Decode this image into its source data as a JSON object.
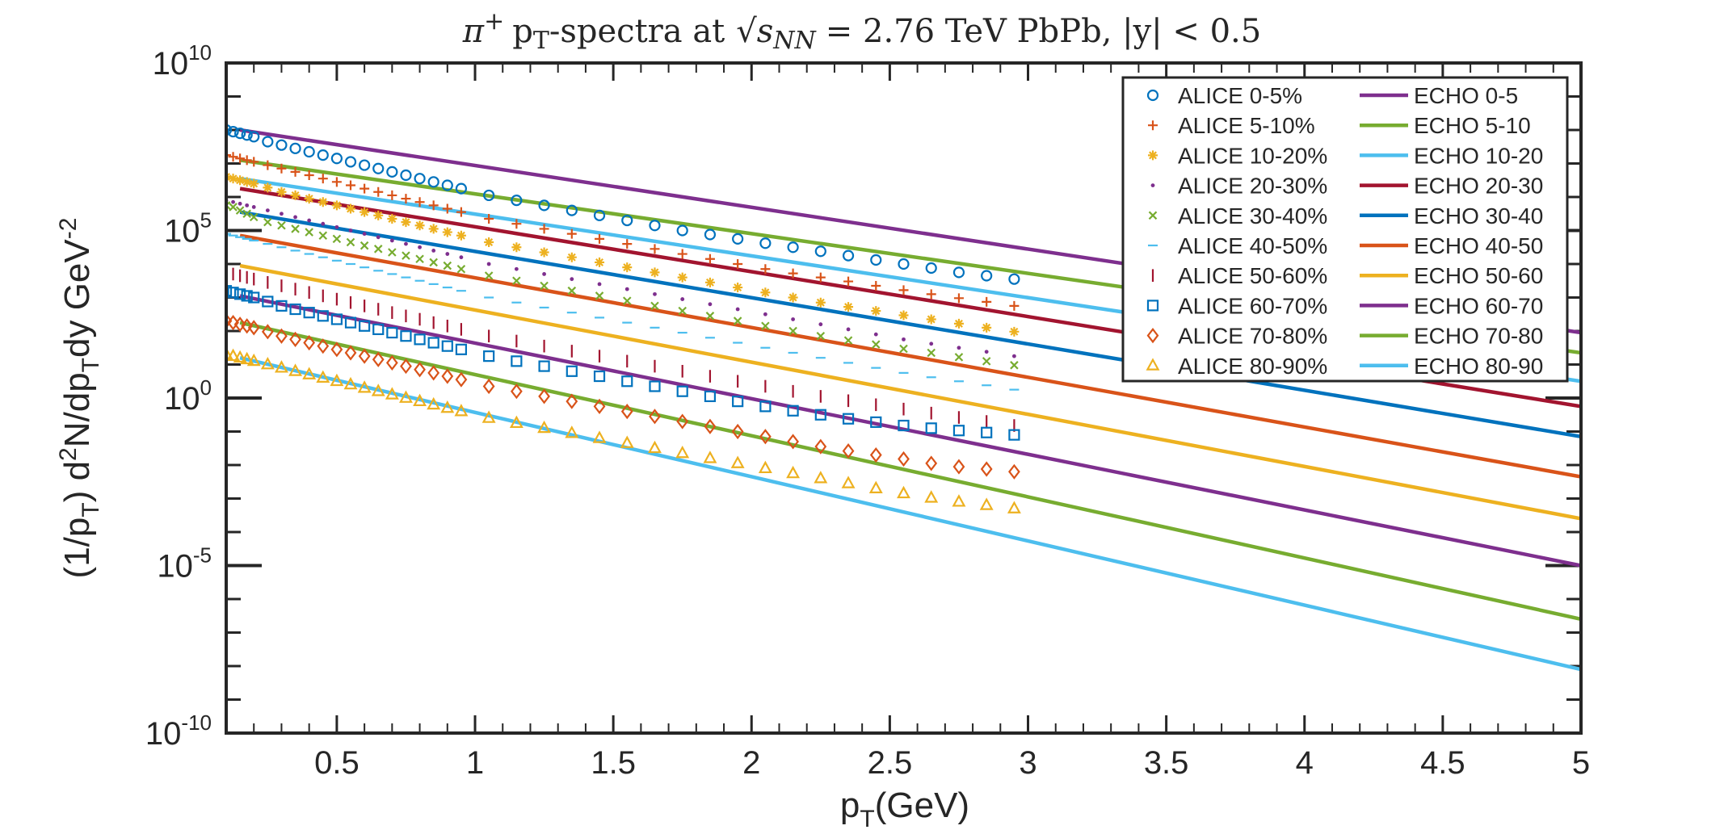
{
  "chart_data": {
    "type": "scatter",
    "title": "π+ pT-spectra at √sNN = 2.76 TeV PbPb, |y| < 0.5",
    "title_parts": {
      "particle": "π",
      "charge": "+",
      "p": "p",
      "T": "T",
      "spectra_at": "-spectra at",
      "s": "s",
      "NN": "NN",
      "rest": "= 2.76 TeV PbPb, |y| < 0.5"
    },
    "xlabel": "pT(GeV)",
    "xlabel_parts": {
      "p": "p",
      "T": "T",
      "unit": "(GeV)"
    },
    "ylabel": "(1/pT) d2N/dpTdy GeV-2",
    "ylabel_parts": {
      "a": "(1/p",
      "T1": "T",
      "b": ") d",
      "two": "2",
      "c": "N/dp",
      "T2": "T",
      "d": "dy GeV",
      "exp": "-2"
    },
    "xlim": [
      0.1,
      5
    ],
    "ylim": [
      -10,
      10
    ],
    "y_scale": "log",
    "x_ticks": [
      "0.5",
      "1",
      "1.5",
      "2",
      "2.5",
      "3",
      "3.5",
      "4",
      "4.5",
      "5"
    ],
    "x_tick_values": [
      0.5,
      1,
      1.5,
      2,
      2.5,
      3,
      3.5,
      4,
      4.5,
      5
    ],
    "y_ticks": [
      {
        "base": "10",
        "exp": "10",
        "value": 10
      },
      {
        "base": "10",
        "exp": "5",
        "value": 5
      },
      {
        "base": "10",
        "exp": "0",
        "value": 0
      },
      {
        "base": "10",
        "exp": "-5",
        "value": -5
      },
      {
        "base": "10",
        "exp": "-10",
        "value": -10
      }
    ],
    "legend_position": "top-right",
    "legend_columns": 2,
    "data_x": [
      0.1,
      0.125,
      0.15,
      0.175,
      0.2,
      0.25,
      0.3,
      0.35,
      0.4,
      0.45,
      0.5,
      0.55,
      0.6,
      0.65,
      0.7,
      0.75,
      0.8,
      0.85,
      0.9,
      0.95,
      1.05,
      1.15,
      1.25,
      1.35,
      1.45,
      1.55,
      1.65,
      1.75,
      1.85,
      1.95,
      2.05,
      2.15,
      2.25,
      2.35,
      2.45,
      2.55,
      2.65,
      2.75,
      2.85,
      2.95
    ],
    "model_x": [
      0.15,
      5
    ],
    "data_series": [
      {
        "name": "ALICE 0-5%",
        "marker": "circle",
        "color": "#0072BD",
        "y_log10": [
          8.0,
          7.95,
          7.9,
          7.85,
          7.8,
          7.65,
          7.55,
          7.45,
          7.35,
          7.25,
          7.15,
          7.05,
          6.95,
          6.85,
          6.75,
          6.65,
          6.55,
          6.45,
          6.35,
          6.25,
          6.05,
          5.9,
          5.75,
          5.6,
          5.45,
          5.3,
          5.15,
          5.0,
          4.88,
          4.75,
          4.62,
          4.5,
          4.38,
          4.25,
          4.12,
          4.0,
          3.88,
          3.75,
          3.65,
          3.55
        ]
      },
      {
        "name": "ALICE 5-10%",
        "marker": "plus",
        "color": "#D95319",
        "y_log10": [
          7.25,
          7.2,
          7.15,
          7.1,
          7.05,
          6.95,
          6.85,
          6.75,
          6.65,
          6.55,
          6.45,
          6.35,
          6.25,
          6.15,
          6.05,
          5.95,
          5.85,
          5.75,
          5.65,
          5.55,
          5.35,
          5.2,
          5.05,
          4.9,
          4.75,
          4.6,
          4.45,
          4.3,
          4.15,
          4.0,
          3.85,
          3.72,
          3.6,
          3.48,
          3.35,
          3.22,
          3.1,
          2.98,
          2.87,
          2.75
        ]
      },
      {
        "name": "ALICE 10-20%",
        "marker": "star",
        "color": "#EDB120",
        "y_log10": [
          6.6,
          6.55,
          6.5,
          6.45,
          6.4,
          6.28,
          6.15,
          6.05,
          5.95,
          5.85,
          5.75,
          5.65,
          5.55,
          5.45,
          5.35,
          5.25,
          5.15,
          5.05,
          4.95,
          4.85,
          4.65,
          4.5,
          4.35,
          4.2,
          4.05,
          3.9,
          3.75,
          3.6,
          3.45,
          3.3,
          3.15,
          3.0,
          2.85,
          2.72,
          2.6,
          2.47,
          2.35,
          2.22,
          2.1,
          1.98
        ]
      },
      {
        "name": "ALICE 20-30%",
        "marker": "dot",
        "color": "#7E2F8E",
        "y_log10": [
          5.9,
          5.85,
          5.8,
          5.75,
          5.7,
          5.6,
          5.5,
          5.4,
          5.3,
          5.2,
          5.1,
          5.0,
          4.9,
          4.8,
          4.7,
          4.6,
          4.5,
          4.4,
          4.3,
          4.2,
          4.0,
          3.85,
          3.7,
          3.55,
          3.4,
          3.25,
          3.1,
          2.95,
          2.8,
          2.65,
          2.5,
          2.35,
          2.2,
          2.05,
          1.9,
          1.75,
          1.62,
          1.5,
          1.38,
          1.25
        ]
      },
      {
        "name": "ALICE 30-40%",
        "marker": "cross",
        "color": "#77AC30",
        "y_log10": [
          5.75,
          5.7,
          5.6,
          5.5,
          5.4,
          5.25,
          5.15,
          5.05,
          4.95,
          4.85,
          4.75,
          4.65,
          4.55,
          4.45,
          4.35,
          4.25,
          4.15,
          4.05,
          3.95,
          3.85,
          3.65,
          3.5,
          3.35,
          3.2,
          3.05,
          2.9,
          2.75,
          2.6,
          2.45,
          2.3,
          2.15,
          2.0,
          1.85,
          1.72,
          1.6,
          1.47,
          1.35,
          1.22,
          1.1,
          0.98
        ]
      },
      {
        "name": "ALICE 40-50%",
        "marker": "dash",
        "color": "#4DBEEE",
        "y_log10": [
          4.9,
          4.85,
          4.8,
          4.75,
          4.7,
          4.6,
          4.5,
          4.4,
          4.3,
          4.2,
          4.1,
          4.0,
          3.9,
          3.8,
          3.7,
          3.6,
          3.5,
          3.4,
          3.3,
          3.2,
          3.0,
          2.85,
          2.7,
          2.55,
          2.4,
          2.25,
          2.1,
          1.95,
          1.8,
          1.65,
          1.5,
          1.35,
          1.2,
          1.05,
          0.9,
          0.75,
          0.62,
          0.5,
          0.38,
          0.25
        ]
      },
      {
        "name": "ALICE 50-60%",
        "marker": "vline",
        "color": "#A2142F",
        "y_log10": [
          3.75,
          3.7,
          3.65,
          3.6,
          3.55,
          3.45,
          3.35,
          3.25,
          3.15,
          3.05,
          2.95,
          2.85,
          2.75,
          2.65,
          2.55,
          2.45,
          2.35,
          2.25,
          2.15,
          2.05,
          1.85,
          1.7,
          1.55,
          1.4,
          1.25,
          1.1,
          0.95,
          0.8,
          0.65,
          0.5,
          0.35,
          0.2,
          0.05,
          -0.08,
          -0.2,
          -0.33,
          -0.45,
          -0.58,
          -0.7,
          -0.82
        ]
      },
      {
        "name": "ALICE 60-70%",
        "marker": "square",
        "color": "#0072BD",
        "y_log10": [
          3.2,
          3.15,
          3.1,
          3.05,
          3.0,
          2.88,
          2.75,
          2.65,
          2.55,
          2.45,
          2.35,
          2.25,
          2.15,
          2.05,
          1.95,
          1.85,
          1.75,
          1.65,
          1.55,
          1.45,
          1.25,
          1.1,
          0.95,
          0.8,
          0.65,
          0.5,
          0.35,
          0.2,
          0.05,
          -0.1,
          -0.25,
          -0.38,
          -0.5,
          -0.62,
          -0.72,
          -0.82,
          -0.9,
          -0.97,
          -1.03,
          -1.1
        ]
      },
      {
        "name": "ALICE 70-80%",
        "marker": "diamond",
        "color": "#D95319",
        "y_log10": [
          2.3,
          2.25,
          2.2,
          2.15,
          2.1,
          1.98,
          1.85,
          1.75,
          1.65,
          1.55,
          1.45,
          1.35,
          1.25,
          1.15,
          1.05,
          0.95,
          0.85,
          0.75,
          0.65,
          0.55,
          0.35,
          0.2,
          0.05,
          -0.1,
          -0.25,
          -0.4,
          -0.55,
          -0.7,
          -0.85,
          -1.0,
          -1.15,
          -1.3,
          -1.45,
          -1.58,
          -1.7,
          -1.82,
          -1.95,
          -2.05,
          -2.12,
          -2.2
        ]
      },
      {
        "name": "ALICE 80-90%",
        "marker": "triangle",
        "color": "#EDB120",
        "y_log10": [
          1.3,
          1.25,
          1.2,
          1.15,
          1.1,
          1.0,
          0.9,
          0.8,
          0.7,
          0.6,
          0.5,
          0.4,
          0.3,
          0.2,
          0.1,
          0.0,
          -0.1,
          -0.2,
          -0.3,
          -0.4,
          -0.6,
          -0.75,
          -0.9,
          -1.05,
          -1.2,
          -1.35,
          -1.5,
          -1.65,
          -1.8,
          -1.95,
          -2.1,
          -2.25,
          -2.4,
          -2.55,
          -2.7,
          -2.85,
          -2.98,
          -3.1,
          -3.2,
          -3.3
        ]
      }
    ],
    "model_series": [
      {
        "name": "ECHO 0-5",
        "color": "#7E2F8E",
        "y_log10": [
          8.0,
          1.95
        ]
      },
      {
        "name": "ECHO 5-10",
        "color": "#77AC30",
        "y_log10": [
          7.1,
          1.35
        ]
      },
      {
        "name": "ECHO 10-20",
        "color": "#4DBEEE",
        "y_log10": [
          6.55,
          0.5
        ]
      },
      {
        "name": "ECHO 20-30",
        "color": "#A2142F",
        "y_log10": [
          6.25,
          -0.25
        ]
      },
      {
        "name": "ECHO 30-40",
        "color": "#0072BD",
        "y_log10": [
          5.55,
          -1.15
        ]
      },
      {
        "name": "ECHO 40-50",
        "color": "#D95319",
        "y_log10": [
          4.85,
          -2.35
        ]
      },
      {
        "name": "ECHO 50-60",
        "color": "#EDB120",
        "y_log10": [
          3.95,
          -3.6
        ]
      },
      {
        "name": "ECHO 60-70",
        "color": "#7E2F8E",
        "y_log10": [
          3.05,
          -5.0
        ]
      },
      {
        "name": "ECHO 70-80",
        "color": "#77AC30",
        "y_log10": [
          2.25,
          -6.6
        ]
      },
      {
        "name": "ECHO 80-90",
        "color": "#4DBEEE",
        "y_log10": [
          1.2,
          -8.1
        ]
      }
    ]
  }
}
